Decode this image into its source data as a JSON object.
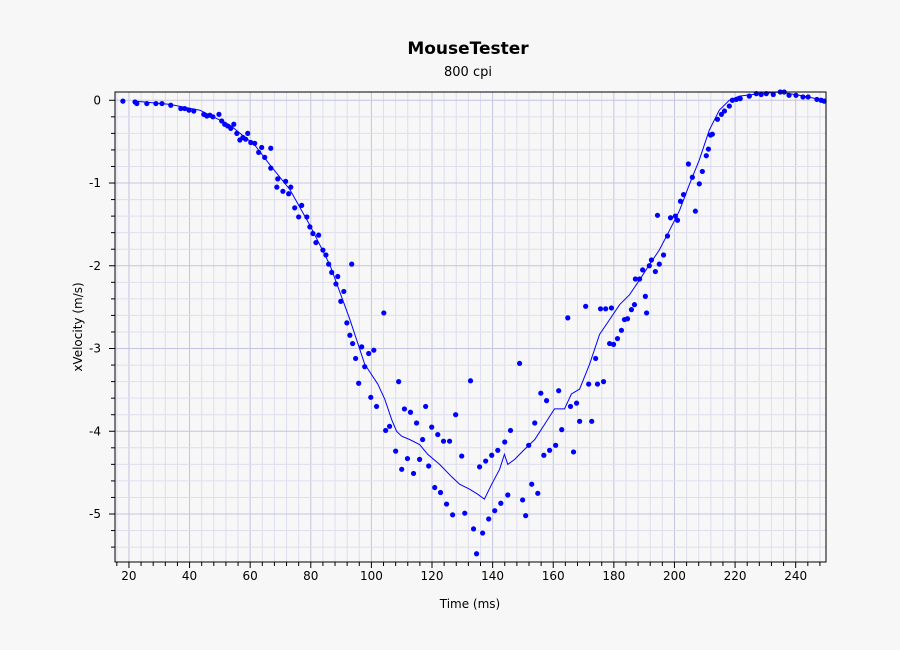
{
  "chart_data": {
    "type": "scatter",
    "title": "MouseTester",
    "subtitle": "800 cpi",
    "xlabel": "Time (ms)",
    "ylabel": "xVelocity (m/s)",
    "xlim": [
      15.4,
      250
    ],
    "ylim": [
      -5.58,
      0.1
    ],
    "xticks": [
      20,
      40,
      60,
      80,
      100,
      120,
      140,
      160,
      180,
      200,
      220,
      240
    ],
    "yticks": [
      0,
      -1,
      -2,
      -3,
      -4,
      -5
    ],
    "grid": true,
    "colors": {
      "series": "#0000ff",
      "grid_major": "#c4c4e0",
      "grid_minor": "#dedeef"
    },
    "series": [
      {
        "kind": "points",
        "values": [
          [
            18.0,
            -0.01
          ],
          [
            22.0,
            -0.02
          ],
          [
            22.6,
            -0.04
          ],
          [
            25.9,
            -0.04
          ],
          [
            28.9,
            -0.04
          ],
          [
            30.9,
            -0.04
          ],
          [
            33.8,
            -0.06
          ],
          [
            37.1,
            -0.1
          ],
          [
            38.4,
            -0.1
          ],
          [
            39.8,
            -0.12
          ],
          [
            41.4,
            -0.13
          ],
          [
            44.7,
            -0.17
          ],
          [
            45.7,
            -0.19
          ],
          [
            46.7,
            -0.18
          ],
          [
            47.7,
            -0.2
          ],
          [
            49.7,
            -0.17
          ],
          [
            50.6,
            -0.25
          ],
          [
            51.6,
            -0.29
          ],
          [
            52.6,
            -0.31
          ],
          [
            53.6,
            -0.34
          ],
          [
            54.6,
            -0.29
          ],
          [
            55.6,
            -0.4
          ],
          [
            56.6,
            -0.48
          ],
          [
            57.6,
            -0.45
          ],
          [
            58.5,
            -0.47
          ],
          [
            59.2,
            -0.4
          ],
          [
            60.2,
            -0.51
          ],
          [
            61.5,
            -0.52
          ],
          [
            62.8,
            -0.63
          ],
          [
            63.8,
            -0.57
          ],
          [
            64.8,
            -0.69
          ],
          [
            66.8,
            -0.58
          ],
          [
            66.8,
            -0.82
          ],
          [
            68.8,
            -1.05
          ],
          [
            69.1,
            -0.95
          ],
          [
            70.8,
            -1.1
          ],
          [
            71.7,
            -0.98
          ],
          [
            72.7,
            -1.13
          ],
          [
            73.4,
            -1.05
          ],
          [
            74.7,
            -1.3
          ],
          [
            76.0,
            -1.41
          ],
          [
            77.0,
            -1.27
          ],
          [
            78.7,
            -1.41
          ],
          [
            79.7,
            -1.53
          ],
          [
            80.7,
            -1.61
          ],
          [
            81.7,
            -1.72
          ],
          [
            82.6,
            -1.63
          ],
          [
            84.0,
            -1.81
          ],
          [
            85.0,
            -1.87
          ],
          [
            85.9,
            -1.98
          ],
          [
            86.9,
            -2.08
          ],
          [
            88.3,
            -2.22
          ],
          [
            88.9,
            -2.13
          ],
          [
            89.9,
            -2.43
          ],
          [
            90.9,
            -2.31
          ],
          [
            91.9,
            -2.69
          ],
          [
            92.9,
            -2.84
          ],
          [
            93.5,
            -1.98
          ],
          [
            93.8,
            -2.94
          ],
          [
            94.8,
            -3.12
          ],
          [
            95.8,
            -3.42
          ],
          [
            96.8,
            -2.98
          ],
          [
            97.8,
            -3.22
          ],
          [
            99.1,
            -3.06
          ],
          [
            100.8,
            -3.02
          ],
          [
            99.8,
            -3.59
          ],
          [
            101.7,
            -3.7
          ],
          [
            104.1,
            -2.57
          ],
          [
            104.7,
            -3.99
          ],
          [
            106.0,
            -3.94
          ],
          [
            108.0,
            -4.24
          ],
          [
            109.0,
            -3.4
          ],
          [
            110.0,
            -4.46
          ],
          [
            110.9,
            -3.73
          ],
          [
            111.9,
            -4.33
          ],
          [
            112.9,
            -3.77
          ],
          [
            113.9,
            -4.51
          ],
          [
            114.9,
            -3.9
          ],
          [
            115.9,
            -4.34
          ],
          [
            116.9,
            -4.1
          ],
          [
            117.9,
            -3.7
          ],
          [
            118.9,
            -4.42
          ],
          [
            119.9,
            -3.95
          ],
          [
            120.9,
            -4.68
          ],
          [
            121.9,
            -4.04
          ],
          [
            122.8,
            -4.74
          ],
          [
            123.8,
            -4.12
          ],
          [
            124.8,
            -4.88
          ],
          [
            125.8,
            -4.12
          ],
          [
            126.8,
            -5.01
          ],
          [
            127.8,
            -3.8
          ],
          [
            129.8,
            -4.3
          ],
          [
            130.8,
            -4.99
          ],
          [
            132.7,
            -3.39
          ],
          [
            133.7,
            -5.18
          ],
          [
            134.7,
            -5.48
          ],
          [
            135.7,
            -4.43
          ],
          [
            136.7,
            -5.23
          ],
          [
            137.7,
            -4.36
          ],
          [
            138.7,
            -5.06
          ],
          [
            139.7,
            -4.29
          ],
          [
            140.7,
            -4.96
          ],
          [
            141.7,
            -4.23
          ],
          [
            142.7,
            -4.87
          ],
          [
            144.0,
            -4.13
          ],
          [
            145.0,
            -4.77
          ],
          [
            145.9,
            -3.99
          ],
          [
            148.9,
            -3.18
          ],
          [
            149.9,
            -4.83
          ],
          [
            150.9,
            -5.02
          ],
          [
            151.9,
            -4.17
          ],
          [
            152.9,
            -4.64
          ],
          [
            153.9,
            -3.9
          ],
          [
            154.9,
            -4.75
          ],
          [
            155.9,
            -3.54
          ],
          [
            156.9,
            -4.29
          ],
          [
            157.8,
            -3.63
          ],
          [
            158.8,
            -4.23
          ],
          [
            160.8,
            -4.17
          ],
          [
            161.8,
            -3.51
          ],
          [
            162.8,
            -3.98
          ],
          [
            164.8,
            -2.63
          ],
          [
            165.7,
            -3.7
          ],
          [
            166.7,
            -4.25
          ],
          [
            167.7,
            -3.66
          ],
          [
            168.7,
            -3.88
          ],
          [
            170.7,
            -2.49
          ],
          [
            171.7,
            -3.43
          ],
          [
            172.7,
            -3.88
          ],
          [
            174.0,
            -3.12
          ],
          [
            174.6,
            -3.43
          ],
          [
            175.6,
            -2.52
          ],
          [
            176.6,
            -3.4
          ],
          [
            177.3,
            -2.52
          ],
          [
            179.2,
            -2.51
          ],
          [
            178.6,
            -2.94
          ],
          [
            179.9,
            -2.95
          ],
          [
            181.2,
            -2.88
          ],
          [
            182.5,
            -2.78
          ],
          [
            183.5,
            -2.65
          ],
          [
            184.5,
            -2.64
          ],
          [
            185.8,
            -2.53
          ],
          [
            186.8,
            -2.47
          ],
          [
            187.1,
            -2.16
          ],
          [
            188.5,
            -2.16
          ],
          [
            189.5,
            -2.05
          ],
          [
            190.4,
            -2.37
          ],
          [
            190.8,
            -2.57
          ],
          [
            191.7,
            -2.0
          ],
          [
            192.4,
            -1.93
          ],
          [
            193.7,
            -2.07
          ],
          [
            194.4,
            -1.39
          ],
          [
            195.0,
            -1.98
          ],
          [
            196.4,
            -1.87
          ],
          [
            197.7,
            -1.64
          ],
          [
            198.7,
            -1.42
          ],
          [
            200.3,
            -1.4
          ],
          [
            201.0,
            -1.45
          ],
          [
            202.0,
            -1.22
          ],
          [
            203.0,
            -1.14
          ],
          [
            204.6,
            -0.77
          ],
          [
            205.9,
            -0.93
          ],
          [
            206.9,
            -1.34
          ],
          [
            208.2,
            -1.01
          ],
          [
            209.2,
            -0.86
          ],
          [
            210.5,
            -0.67
          ],
          [
            211.2,
            -0.59
          ],
          [
            211.9,
            -0.42
          ],
          [
            212.5,
            -0.41
          ],
          [
            214.2,
            -0.23
          ],
          [
            215.5,
            -0.17
          ],
          [
            216.5,
            -0.13
          ],
          [
            218.1,
            -0.07
          ],
          [
            219.1,
            0.0
          ],
          [
            220.4,
            0.01
          ],
          [
            221.7,
            0.02
          ],
          [
            224.7,
            0.05
          ],
          [
            227.0,
            0.08
          ],
          [
            228.6,
            0.07
          ],
          [
            230.3,
            0.08
          ],
          [
            232.6,
            0.07
          ],
          [
            234.9,
            0.1
          ],
          [
            236.2,
            0.1
          ],
          [
            237.8,
            0.06
          ],
          [
            240.1,
            0.06
          ],
          [
            242.4,
            0.04
          ],
          [
            244.1,
            0.04
          ],
          [
            247.0,
            0.01
          ],
          [
            248.4,
            0.0
          ],
          [
            249.4,
            -0.01
          ]
        ]
      },
      {
        "kind": "line",
        "values": [
          [
            22.0,
            -0.01
          ],
          [
            33.5,
            -0.05
          ],
          [
            43.4,
            -0.12
          ],
          [
            53.3,
            -0.3
          ],
          [
            61.5,
            -0.54
          ],
          [
            66.5,
            -0.78
          ],
          [
            73.1,
            -1.08
          ],
          [
            79.7,
            -1.51
          ],
          [
            86.3,
            -1.99
          ],
          [
            92.9,
            -2.65
          ],
          [
            97.8,
            -3.19
          ],
          [
            102.1,
            -3.43
          ],
          [
            104.4,
            -3.61
          ],
          [
            106.7,
            -3.86
          ],
          [
            108.3,
            -4.0
          ],
          [
            110.0,
            -4.06
          ],
          [
            112.6,
            -4.1
          ],
          [
            115.9,
            -4.16
          ],
          [
            118.6,
            -4.28
          ],
          [
            122.5,
            -4.4
          ],
          [
            126.5,
            -4.55
          ],
          [
            129.1,
            -4.64
          ],
          [
            132.4,
            -4.7
          ],
          [
            135.0,
            -4.76
          ],
          [
            137.3,
            -4.82
          ],
          [
            139.7,
            -4.64
          ],
          [
            142.3,
            -4.46
          ],
          [
            143.9,
            -4.28
          ],
          [
            145.0,
            -4.4
          ],
          [
            147.3,
            -4.34
          ],
          [
            150.5,
            -4.22
          ],
          [
            153.9,
            -4.1
          ],
          [
            157.1,
            -3.92
          ],
          [
            160.4,
            -3.73
          ],
          [
            163.7,
            -3.73
          ],
          [
            166.0,
            -3.55
          ],
          [
            168.7,
            -3.49
          ],
          [
            172.0,
            -3.19
          ],
          [
            175.3,
            -2.83
          ],
          [
            178.6,
            -2.65
          ],
          [
            181.9,
            -2.47
          ],
          [
            185.2,
            -2.35
          ],
          [
            188.5,
            -2.17
          ],
          [
            191.7,
            -1.99
          ],
          [
            195.0,
            -1.81
          ],
          [
            198.4,
            -1.57
          ],
          [
            201.7,
            -1.33
          ],
          [
            204.9,
            -1.02
          ],
          [
            208.2,
            -0.72
          ],
          [
            211.5,
            -0.36
          ],
          [
            214.8,
            -0.12
          ],
          [
            218.1,
            0.0
          ],
          [
            221.4,
            0.05
          ],
          [
            228.0,
            0.08
          ],
          [
            234.6,
            0.1
          ],
          [
            241.2,
            0.06
          ],
          [
            249.4,
            0.0
          ]
        ]
      }
    ]
  }
}
